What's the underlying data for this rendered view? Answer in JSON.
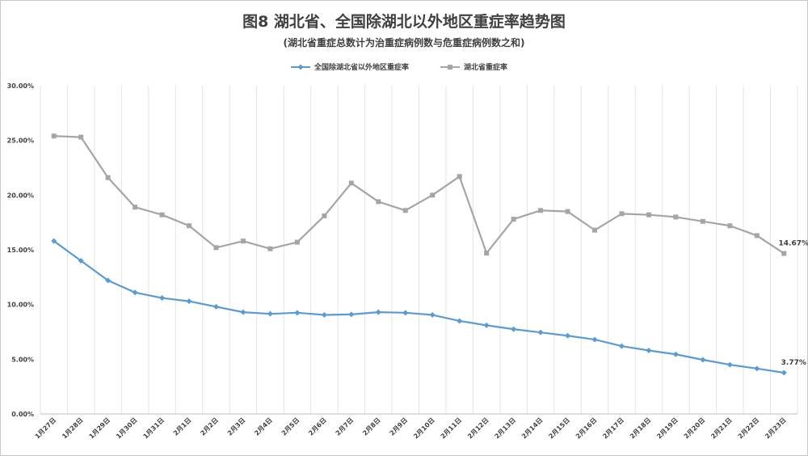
{
  "chart_data": {
    "type": "line",
    "title": "图8 湖北省、全国除湖北以外地区重症率趋势图",
    "subtitle": "(湖北省重症总数计为治重症病例数与危重症病例数之和)",
    "xlabel": "",
    "ylabel": "",
    "ylim": [
      0,
      30
    ],
    "yticks": [
      "0.00%",
      "5.00%",
      "10.00%",
      "15.00%",
      "20.00%",
      "25.00%",
      "30.00%"
    ],
    "grid": "vertical",
    "legend_position": "top-center",
    "categories": [
      "1月27日",
      "1月28日",
      "1月29日",
      "1月30日",
      "1月31日",
      "2月1日",
      "2月2日",
      "2月3日",
      "2月4日",
      "2月5日",
      "2月6日",
      "2月7日",
      "2月8日",
      "2月9日",
      "2月10日",
      "2月11日",
      "2月12日",
      "2月13日",
      "2月14日",
      "2月15日",
      "2月16日",
      "2月17日",
      "2月18日",
      "2月19日",
      "2月20日",
      "2月21日",
      "2月22日",
      "2月23日"
    ],
    "series": [
      {
        "name": "全国除湖北省以外地区重症率",
        "color": "#5b9bd5",
        "marker": "diamond",
        "values": [
          15.8,
          14.0,
          12.2,
          11.1,
          10.6,
          10.3,
          9.8,
          9.3,
          9.15,
          9.25,
          9.05,
          9.1,
          9.3,
          9.25,
          9.05,
          8.5,
          8.1,
          7.75,
          7.45,
          7.15,
          6.8,
          6.2,
          5.8,
          5.45,
          4.95,
          4.5,
          4.15,
          3.77
        ],
        "end_label": "3.77%"
      },
      {
        "name": "湖北省重症率",
        "color": "#a5a5a5",
        "marker": "square",
        "values": [
          25.4,
          25.3,
          21.6,
          18.9,
          18.2,
          17.2,
          15.2,
          15.8,
          15.1,
          15.7,
          18.1,
          21.1,
          19.4,
          18.6,
          20.0,
          21.7,
          14.7,
          17.8,
          18.6,
          18.5,
          16.8,
          18.3,
          18.2,
          18.0,
          17.6,
          17.2,
          16.3,
          14.67
        ],
        "end_label": "14.67%"
      }
    ]
  }
}
